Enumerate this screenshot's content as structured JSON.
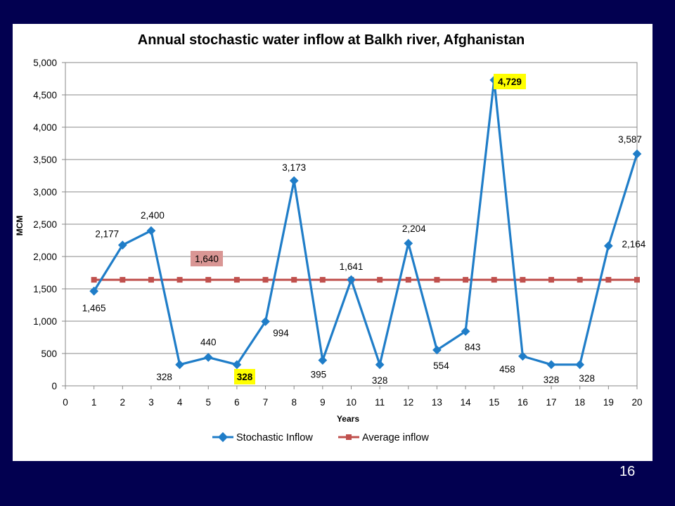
{
  "slide": {
    "number": "16"
  },
  "chart_data": {
    "type": "line",
    "title": "Annual stochastic water inflow at Balkh river, Afghanistan",
    "xlabel": "Years",
    "ylabel": "MCM",
    "xlim": [
      0,
      20
    ],
    "ylim": [
      0,
      5000
    ],
    "x_ticks": [
      "0",
      "1",
      "2",
      "3",
      "4",
      "5",
      "6",
      "7",
      "8",
      "9",
      "10",
      "11",
      "12",
      "13",
      "14",
      "15",
      "16",
      "17",
      "18",
      "19",
      "20"
    ],
    "y_ticks": [
      "0",
      "500",
      "1,000",
      "1,500",
      "2,000",
      "2,500",
      "3,000",
      "3,500",
      "4,000",
      "4,500",
      "5,000"
    ],
    "grid": true,
    "legend_position": "bottom",
    "x": [
      1,
      2,
      3,
      4,
      5,
      6,
      7,
      8,
      9,
      10,
      11,
      12,
      13,
      14,
      15,
      16,
      17,
      18,
      19,
      20
    ],
    "series": [
      {
        "name": "Stochastic Inflow",
        "color": "#1F7DC8",
        "marker": "diamond",
        "values": [
          1465,
          2177,
          2400,
          328,
          440,
          328,
          994,
          3173,
          395,
          1641,
          328,
          2204,
          554,
          843,
          4729,
          458,
          328,
          328,
          2164,
          3587
        ],
        "labels": [
          "1,465",
          "2,177",
          "2,400",
          "328",
          "440",
          "328",
          "994",
          "3,173",
          "395",
          "1,641",
          "328",
          "2,204",
          "554",
          "843",
          "4,729",
          "458",
          "328",
          "328",
          "2,164",
          "3,587"
        ]
      },
      {
        "name": "Average inflow",
        "color": "#C0504D",
        "marker": "square",
        "values": [
          1640,
          1640,
          1640,
          1640,
          1640,
          1640,
          1640,
          1640,
          1640,
          1640,
          1640,
          1640,
          1640,
          1640,
          1640,
          1640,
          1640,
          1640,
          1640,
          1640
        ]
      }
    ],
    "annotations": [
      {
        "text": "1,640",
        "x": 5,
        "y": 1640,
        "background": "#D99694"
      },
      {
        "text": "328",
        "x": 6,
        "y": 328,
        "background": "#FFFF00",
        "bold": true
      },
      {
        "text": "4,729",
        "x": 15,
        "y": 4729,
        "background": "#FFFF00",
        "bold": true
      }
    ]
  }
}
